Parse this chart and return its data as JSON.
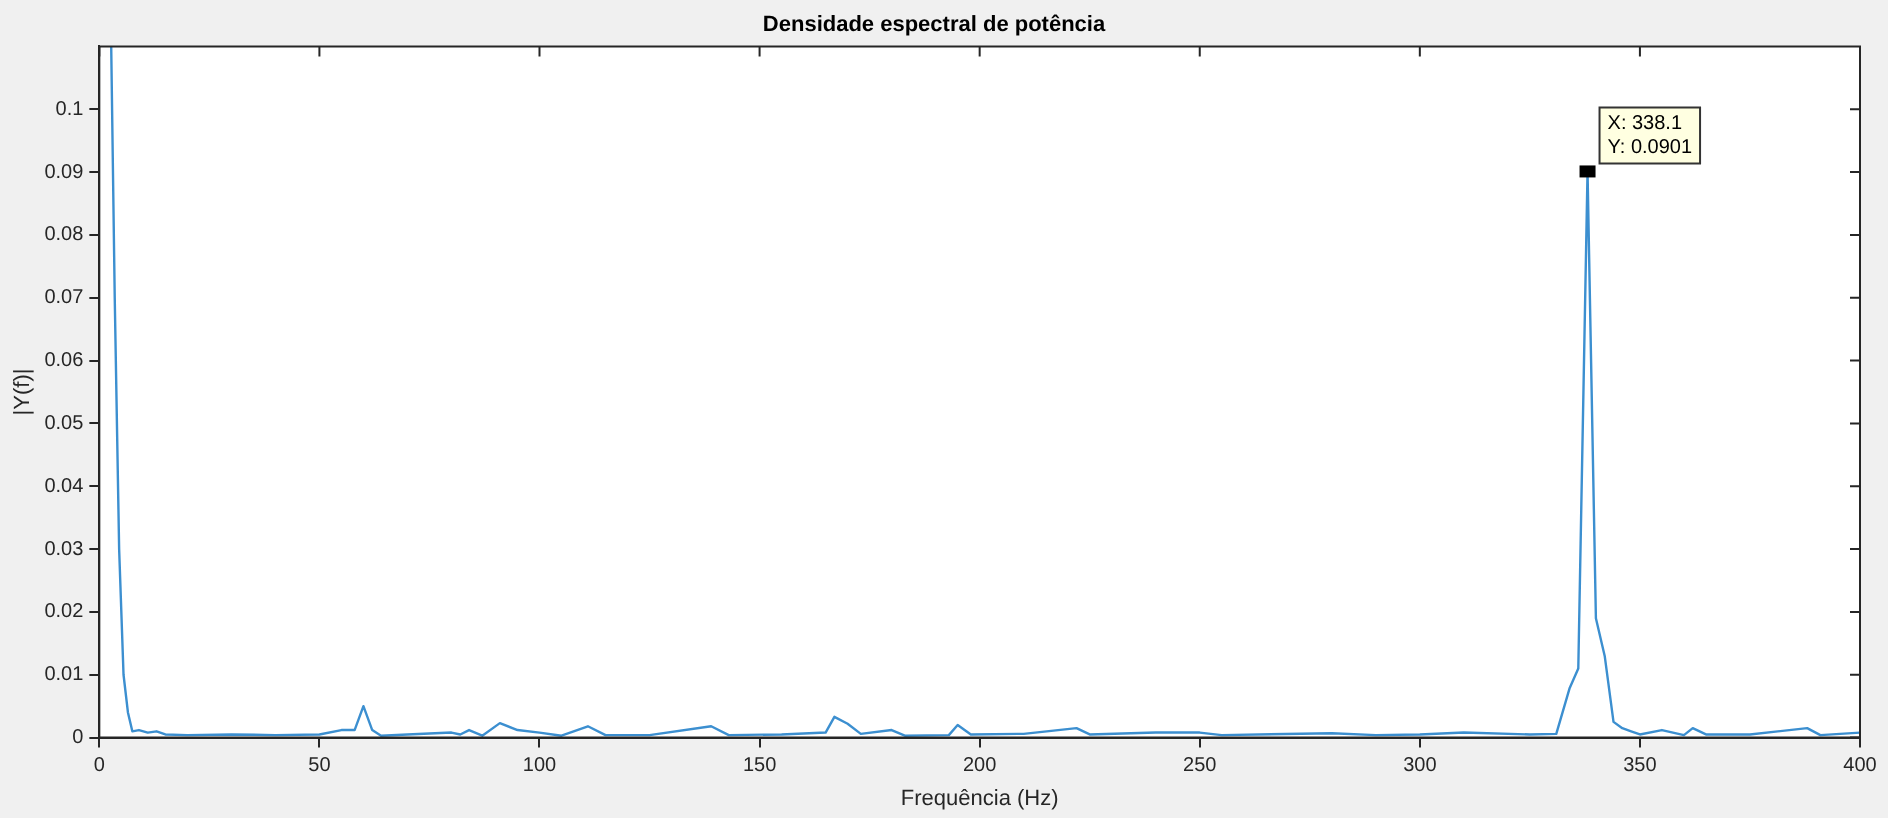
{
  "chart_data": {
    "type": "line",
    "title": "Densidade espectral de potência",
    "xlabel": "Frequência (Hz)",
    "ylabel": "|Y(f)|",
    "x": [
      2.7,
      3.5,
      4.5,
      5.5,
      6.5,
      7.5,
      9,
      11,
      13,
      15,
      20,
      30,
      40,
      50,
      55,
      58,
      60,
      62,
      64,
      70,
      80,
      82,
      84,
      87,
      91,
      95,
      100,
      105,
      111,
      115,
      125,
      139,
      143,
      155,
      165,
      167,
      170,
      173,
      180,
      183,
      193,
      195,
      198,
      210,
      222,
      225,
      240,
      250,
      255,
      280,
      290,
      300,
      310,
      325,
      331,
      334,
      336,
      338.1,
      340,
      342,
      344,
      346,
      348,
      350,
      355,
      360,
      362,
      365,
      375,
      388,
      391,
      400
    ],
    "series": [
      {
        "color": "#3c8fd0",
        "values": [
          0.11,
          0.07,
          0.03,
          0.01,
          0.004,
          0.001,
          0.0012,
          0.0008,
          0.001,
          0.0005,
          0.0004,
          0.0005,
          0.0004,
          0.0005,
          0.0012,
          0.0012,
          0.005,
          0.0012,
          0.0003,
          0.0005,
          0.0008,
          0.0005,
          0.0012,
          0.0003,
          0.0023,
          0.0012,
          0.0008,
          0.0003,
          0.0018,
          0.0004,
          0.0004,
          0.0018,
          0.0004,
          0.0005,
          0.0008,
          0.0033,
          0.0022,
          0.0006,
          0.0012,
          0.0003,
          0.0004,
          0.002,
          0.0005,
          0.0006,
          0.0015,
          0.0005,
          0.0008,
          0.0008,
          0.0004,
          0.0007,
          0.0004,
          0.0005,
          0.0008,
          0.0005,
          0.0006,
          0.0078,
          0.011,
          0.0901,
          0.019,
          0.013,
          0.0025,
          0.0015,
          0.001,
          0.0005,
          0.0012,
          0.0004,
          0.0015,
          0.0005,
          0.0005,
          0.0015,
          0.0004,
          0.0008
        ]
      }
    ],
    "xlim": [
      0,
      400
    ],
    "xticks": [
      0,
      50,
      100,
      150,
      200,
      250,
      300,
      350,
      400
    ],
    "ylim": [
      0,
      0.11
    ],
    "yticks": [
      0,
      0.01,
      0.02,
      0.03,
      0.04,
      0.05,
      0.06,
      0.07,
      0.08,
      0.09,
      0.1
    ],
    "grid": false,
    "legend": false,
    "marker": "none",
    "line_style": "solid",
    "annotations": [
      {
        "text": "X: 338.1\nY: 0.0901",
        "x": 338.1,
        "y": 0.0901
      }
    ]
  }
}
